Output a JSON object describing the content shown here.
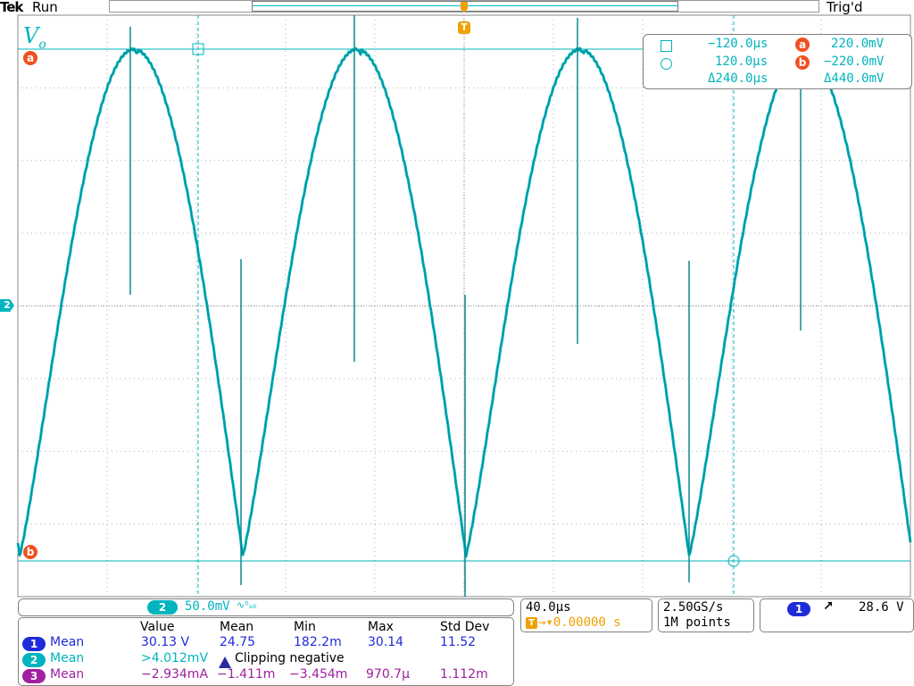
{
  "header": {
    "brand": "Tek",
    "run_state": "Run",
    "trigger_state": "Trig'd"
  },
  "trigger_marker": "T",
  "waveform_label": "V",
  "waveform_label_sub": "o",
  "cursor_markers": {
    "a": "a",
    "b": "b"
  },
  "channel_marker": "2",
  "cursor_readout": {
    "t1": "−120.0µs",
    "v_a": "220.0mV",
    "t2": "120.0µs",
    "v_b": "−220.0mV",
    "dt": "Δ240.0µs",
    "dv": "Δ440.0mV"
  },
  "channel_scale": {
    "channel": "2",
    "scale": "50.0mV",
    "suffix": "∿⁰ₛ₀"
  },
  "timebase": {
    "per_div": "40.0µs",
    "trigger_position": "→▾0.00000 s"
  },
  "acquisition": {
    "sample_rate": "2.50GS/s",
    "record_length": "1M points"
  },
  "trigger": {
    "channel": "1",
    "slope_icon": "↗",
    "level": "28.6 V"
  },
  "measurements": {
    "headers": [
      "Value",
      "Mean",
      "Min",
      "Max",
      "Std Dev"
    ],
    "rows": [
      {
        "ch": "1",
        "type": "Mean",
        "value": "30.13 V",
        "mean": "24.75",
        "min": "182.2m",
        "max": "30.14",
        "std": "11.52"
      },
      {
        "ch": "2",
        "type": "Mean",
        "value": ">4.012mV",
        "warning": "Clipping negative"
      },
      {
        "ch": "3",
        "type": "Mean",
        "value": "−2.934mA",
        "mean": "−1.411m",
        "min": "−3.454m",
        "max": "970.7µ",
        "std": "1.112m"
      }
    ]
  },
  "colors": {
    "ch1": "#1e2bd8",
    "ch2": "#00b4be",
    "ch3": "#a020a0",
    "cursor": "#f05020",
    "trigger": "#f0a000"
  }
}
